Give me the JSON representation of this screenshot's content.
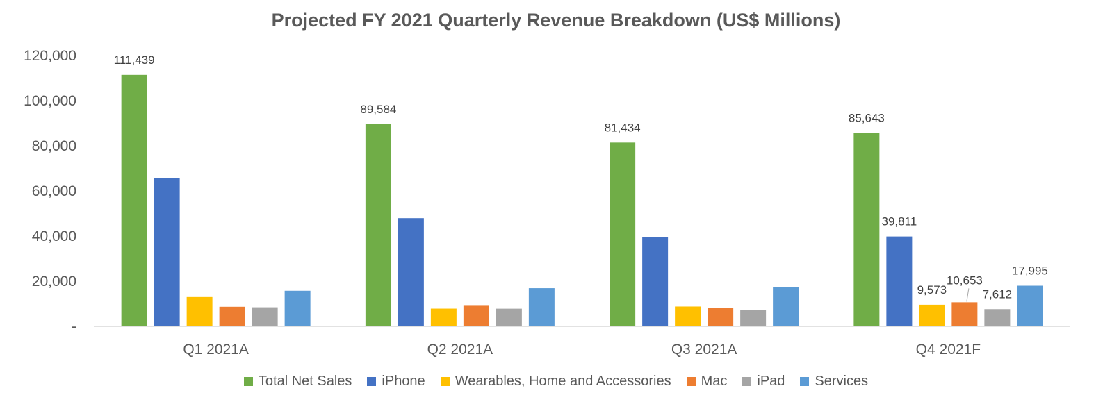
{
  "chart_data": {
    "type": "bar",
    "title": "Projected FY 2021 Quarterly Revenue Breakdown (US$ Millions)",
    "xlabel": "",
    "ylabel": "",
    "categories": [
      "Q1 2021A",
      "Q2 2021A",
      "Q3 2021A",
      "Q4 2021F"
    ],
    "ylim": [
      0,
      120000
    ],
    "yticks": [
      0,
      20000,
      40000,
      60000,
      80000,
      100000,
      120000
    ],
    "ytick_labels": [
      "-",
      "20,000",
      "40,000",
      "60,000",
      "80,000",
      "100,000",
      "120,000"
    ],
    "grid": false,
    "legend_position": "bottom",
    "series": [
      {
        "name": "Total Net Sales",
        "color": "#70AD47",
        "values": [
          111439,
          89584,
          81434,
          85643
        ],
        "labels": [
          "111,439",
          "89,584",
          "81,434",
          "85,643"
        ]
      },
      {
        "name": "iPhone",
        "color": "#4472C4",
        "values": [
          65597,
          47938,
          39570,
          39811
        ],
        "labels": [
          "",
          "",
          "",
          "39,811"
        ]
      },
      {
        "name": "Wearables, Home and Accessories",
        "color": "#FFC000",
        "values": [
          12971,
          7836,
          8775,
          9573
        ],
        "labels": [
          "",
          "",
          "",
          "9,573"
        ]
      },
      {
        "name": "Mac",
        "color": "#ED7D31",
        "values": [
          8675,
          9102,
          8235,
          10653
        ],
        "labels": [
          "",
          "",
          "",
          "10,653"
        ]
      },
      {
        "name": "iPad",
        "color": "#A5A5A5",
        "values": [
          8435,
          7807,
          7368,
          7612
        ],
        "labels": [
          "",
          "",
          "",
          "7,612"
        ]
      },
      {
        "name": "Services",
        "color": "#5B9BD5",
        "values": [
          15761,
          16901,
          17486,
          17995
        ],
        "labels": [
          "",
          "",
          "",
          "17,995"
        ]
      }
    ]
  }
}
